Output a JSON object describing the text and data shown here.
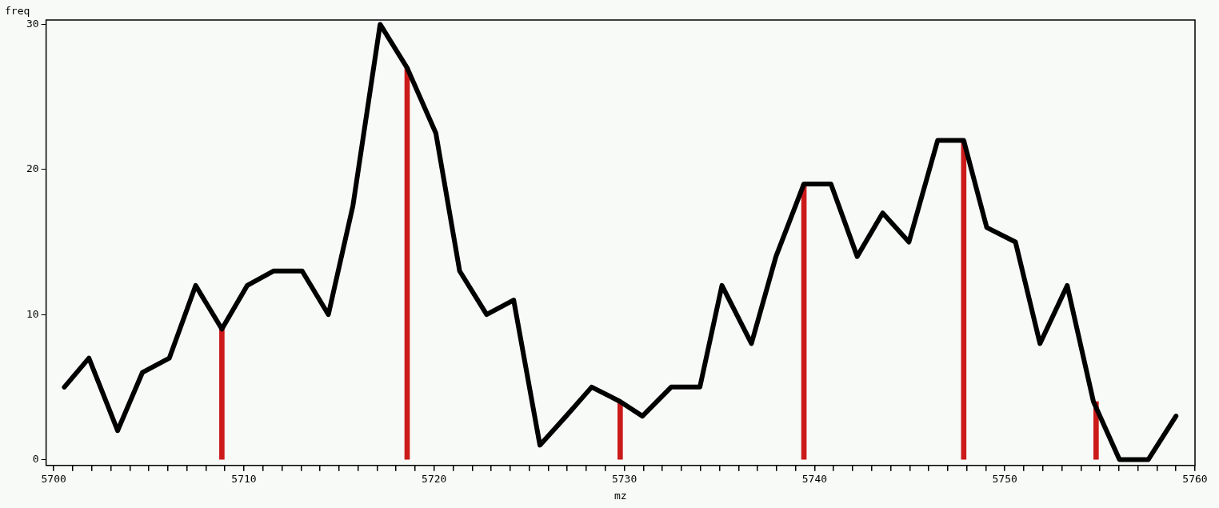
{
  "chart_data": {
    "type": "line",
    "xlabel": "mz",
    "ylabel": "freq",
    "grid": false,
    "legend": false,
    "marker": "none",
    "line_style": "solid",
    "xlim": [
      5699.6,
      5760
    ],
    "ylim": [
      -0.4,
      30.3
    ],
    "xticks": [
      5700,
      {
        "value": 5701,
        "label": null
      },
      {
        "value": 5702,
        "label": null
      },
      {
        "value": 5703,
        "label": null
      },
      {
        "value": 5704,
        "label": null
      },
      {
        "value": 5705,
        "label": null
      },
      {
        "value": 5706,
        "label": null
      },
      {
        "value": 5707,
        "label": null
      },
      {
        "value": 5708,
        "label": null
      },
      {
        "value": 5709,
        "label": null
      },
      5710,
      {
        "value": 5711,
        "label": null
      },
      {
        "value": 5712,
        "label": null
      },
      {
        "value": 5713,
        "label": null
      },
      {
        "value": 5714,
        "label": null
      },
      {
        "value": 5715,
        "label": null
      },
      {
        "value": 5716,
        "label": null
      },
      {
        "value": 5717,
        "label": null
      },
      {
        "value": 5718,
        "label": null
      },
      {
        "value": 5719,
        "label": null
      },
      5720,
      {
        "value": 5721,
        "label": null
      },
      {
        "value": 5722,
        "label": null
      },
      {
        "value": 5723,
        "label": null
      },
      {
        "value": 5724,
        "label": null
      },
      {
        "value": 5725,
        "label": null
      },
      {
        "value": 5726,
        "label": null
      },
      {
        "value": 5727,
        "label": null
      },
      {
        "value": 5728,
        "label": null
      },
      {
        "value": 5729,
        "label": null
      },
      5730,
      {
        "value": 5731,
        "label": null
      },
      {
        "value": 5732,
        "label": null
      },
      {
        "value": 5733,
        "label": null
      },
      {
        "value": 5734,
        "label": null
      },
      {
        "value": 5735,
        "label": null
      },
      {
        "value": 5736,
        "label": null
      },
      {
        "value": 5737,
        "label": null
      },
      {
        "value": 5738,
        "label": null
      },
      {
        "value": 5739,
        "label": null
      },
      5740,
      {
        "value": 5741,
        "label": null
      },
      {
        "value": 5742,
        "label": null
      },
      {
        "value": 5743,
        "label": null
      },
      {
        "value": 5744,
        "label": null
      },
      {
        "value": 5745,
        "label": null
      },
      {
        "value": 5746,
        "label": null
      },
      {
        "value": 5747,
        "label": null
      },
      {
        "value": 5748,
        "label": null
      },
      {
        "value": 5749,
        "label": null
      },
      5750,
      {
        "value": 5751,
        "label": null
      },
      {
        "value": 5752,
        "label": null
      },
      {
        "value": 5753,
        "label": null
      },
      {
        "value": 5754,
        "label": null
      },
      {
        "value": 5755,
        "label": null
      },
      {
        "value": 5756,
        "label": null
      },
      {
        "value": 5757,
        "label": null
      },
      {
        "value": 5758,
        "label": null
      },
      {
        "value": 5759,
        "label": null
      },
      5760
    ],
    "yticks": [
      0,
      10,
      20,
      30
    ],
    "series": [
      {
        "type": "bar",
        "color": "#cc1a1a",
        "x": [
          5708.84,
          5718.58,
          5729.78,
          5739.44,
          5747.84,
          5754.8
        ],
        "values": [
          9,
          27,
          4,
          19,
          22,
          4
        ]
      },
      {
        "color": "#000000",
        "x": [
          5700.56,
          5701.85,
          5703.36,
          5704.66,
          5706.08,
          5707.46,
          5708.84,
          5710.17,
          5711.55,
          5713.06,
          5714.44,
          5715.73,
          5717.16,
          5718.58,
          5720.09,
          5721.34,
          5722.76,
          5724.18,
          5725.56,
          5726.94,
          5728.28,
          5729.78,
          5730.95,
          5732.46,
          5733.97,
          5735.13,
          5736.68,
          5737.97,
          5739.44,
          5740.86,
          5742.24,
          5743.58,
          5744.96,
          5746.47,
          5747.84,
          5749.05,
          5750.56,
          5751.85,
          5753.28,
          5754.66,
          5756.03,
          5757.54,
          5759.0
        ],
        "values": [
          5,
          7,
          2,
          6,
          7,
          12,
          9,
          12,
          13,
          13,
          10,
          17.5,
          30,
          27,
          22.5,
          13,
          10,
          11,
          1,
          3,
          5,
          4,
          3,
          5,
          5,
          12,
          8,
          14,
          19,
          19,
          14,
          17,
          15,
          22,
          22,
          16,
          15,
          8,
          12,
          4,
          0,
          0,
          3
        ]
      }
    ]
  }
}
